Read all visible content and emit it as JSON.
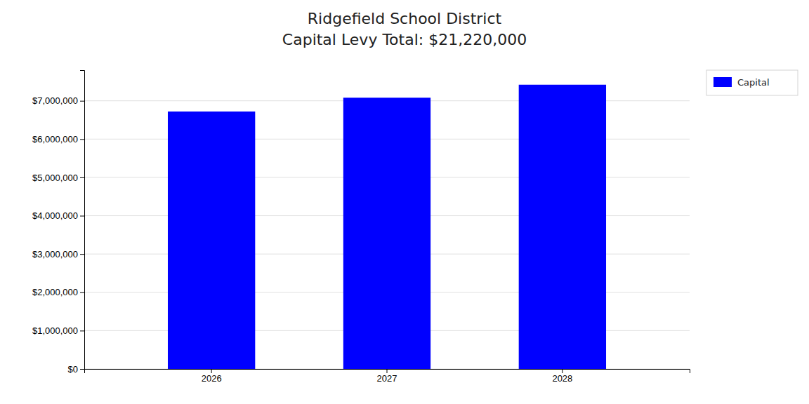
{
  "chart_data": {
    "type": "bar",
    "title": "Ridgefield School District",
    "subtitle": "Capital Levy Total: $21,220,000",
    "categories": [
      "2026",
      "2027",
      "2028"
    ],
    "series": [
      {
        "name": "Capital",
        "color": "#0000ff",
        "values": [
          6720000,
          7080000,
          7420000
        ]
      }
    ],
    "ylim": [
      0,
      7800000
    ],
    "yticks": [
      {
        "value": 0,
        "label": "$0"
      },
      {
        "value": 1000000,
        "label": "$1,000,000"
      },
      {
        "value": 2000000,
        "label": "$2,000,000"
      },
      {
        "value": 3000000,
        "label": "$3,000,000"
      },
      {
        "value": 4000000,
        "label": "$4,000,000"
      },
      {
        "value": 5000000,
        "label": "$5,000,000"
      },
      {
        "value": 6000000,
        "label": "$6,000,000"
      },
      {
        "value": 7000000,
        "label": "$7,000,000"
      }
    ],
    "grid": true,
    "legend": "right"
  }
}
